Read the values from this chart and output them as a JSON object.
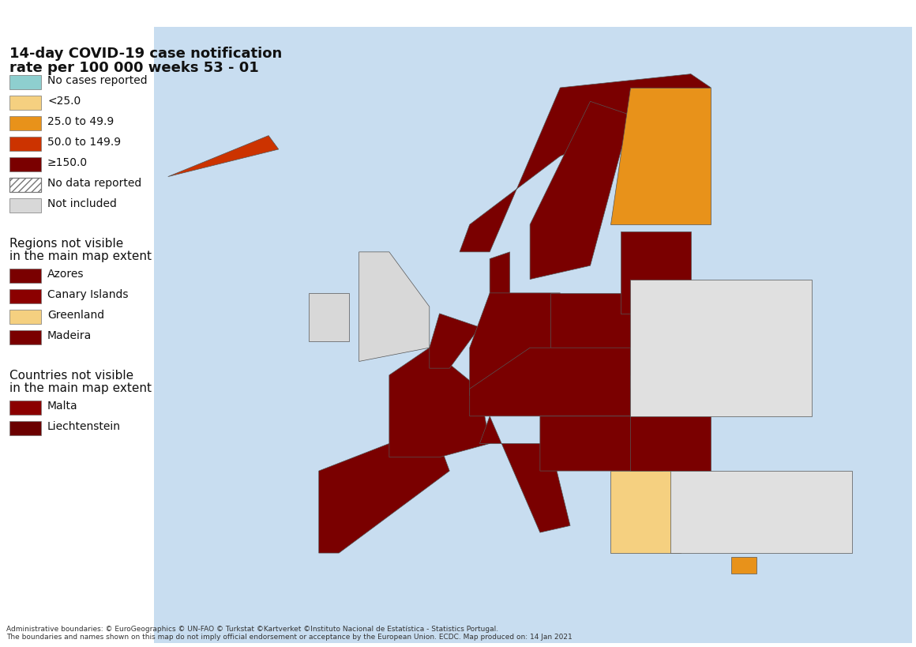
{
  "title_line1": "14-day COVID-19 case notification",
  "title_line2": "rate per 100 000 weeks 53 - 01",
  "legend_categories": [
    {
      "label": "No cases reported",
      "color": "#7fc4c4"
    },
    {
      "label": "<25.0",
      "color": "#f5d080"
    },
    {
      "label": "25.0 to 49.9",
      "color": "#e8a020"
    },
    {
      "label": "50.0 to 149.9",
      "color": "#d04010"
    },
    {
      "label": "≥150.0",
      "color": "#6b0000"
    },
    {
      "label": "No data reported",
      "color": "hatched"
    },
    {
      "label": "Not included",
      "color": "#e0e0e0"
    }
  ],
  "regions_not_visible": [
    {
      "label": "Azores",
      "color": "#7a0000"
    },
    {
      "label": "Canary Islands",
      "color": "#8b0000"
    },
    {
      "label": "Greenland",
      "color": "#f5d080"
    },
    {
      "label": "Madeira",
      "color": "#7a0000"
    }
  ],
  "countries_not_visible": [
    {
      "label": "Malta",
      "color": "#8b0000"
    },
    {
      "label": "Liechtenstein",
      "color": "#6b0000"
    }
  ],
  "footnote_line1": "Administrative boundaries: © EuroGeographics © UN-FAO © Turkstat ©Kartverket ©Instituto Nacional de Estatística - Statistics Portugal.",
  "footnote_line2": "The boundaries and names shown on this map do not imply official endorsement or acceptance by the European Union. ECDC. Map produced on: 14 Jan 2021",
  "bg_color": "#ffffff",
  "map_bg": "#f0f0f0",
  "dark_red": "#6b0000",
  "medium_red": "#8b0000",
  "orange_red": "#c0392b",
  "orange": "#e8a020",
  "light_yellow": "#f5d080",
  "teal": "#7fc4c4",
  "no_data_hatch": "#aaaaaa",
  "not_included": "#e0e0e0"
}
